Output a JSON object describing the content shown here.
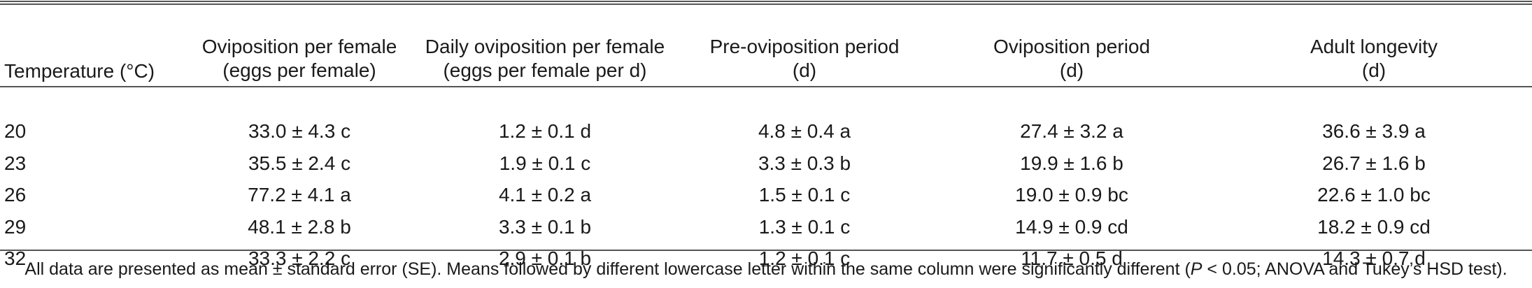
{
  "table": {
    "headers": [
      {
        "line1": "",
        "line2": "Temperature (°C)"
      },
      {
        "line1": "Oviposition per female",
        "line2": "(eggs per female)"
      },
      {
        "line1": "Daily oviposition per female",
        "line2": "(eggs per female per d)"
      },
      {
        "line1": "Pre-oviposition period",
        "line2": "(d)"
      },
      {
        "line1": "Oviposition period",
        "line2": "(d)"
      },
      {
        "line1": "Adult longevity",
        "line2": "(d)"
      }
    ],
    "rows": [
      [
        "20",
        "33.0 ± 4.3 c",
        "1.2 ± 0.1 d",
        "4.8 ± 0.4 a",
        "27.4 ± 3.2 a",
        "36.6 ± 3.9 a"
      ],
      [
        "23",
        "35.5 ± 2.4 c",
        "1.9 ± 0.1 c",
        "3.3 ± 0.3 b",
        "19.9 ± 1.6 b",
        "26.7 ± 1.6 b"
      ],
      [
        "26",
        "77.2 ± 4.1 a",
        "4.1 ± 0.2 a",
        "1.5 ± 0.1 c",
        "19.0 ± 0.9 bc",
        "22.6 ± 1.0 bc"
      ],
      [
        "29",
        "48.1 ± 2.8 b",
        "3.3 ± 0.1 b",
        "1.3 ± 0.1 c",
        "14.9 ± 0.9 cd",
        "18.2 ± 0.9 cd"
      ],
      [
        "32",
        "33.3 ± 2.2 c",
        "2.9 ± 0.1 b",
        "1.2 ± 0.1 c",
        "11.7 ± 0.5 d",
        "14.3 ± 0.7 d"
      ]
    ]
  },
  "footnote": {
    "text_before": "All data are presented as mean ± standard error (SE). Means followed by different lowercase letter within the same column were significantly different (",
    "p_symbol": "P",
    "text_after": " < 0.05; ANOVA and Tukey’s HSD test)."
  }
}
